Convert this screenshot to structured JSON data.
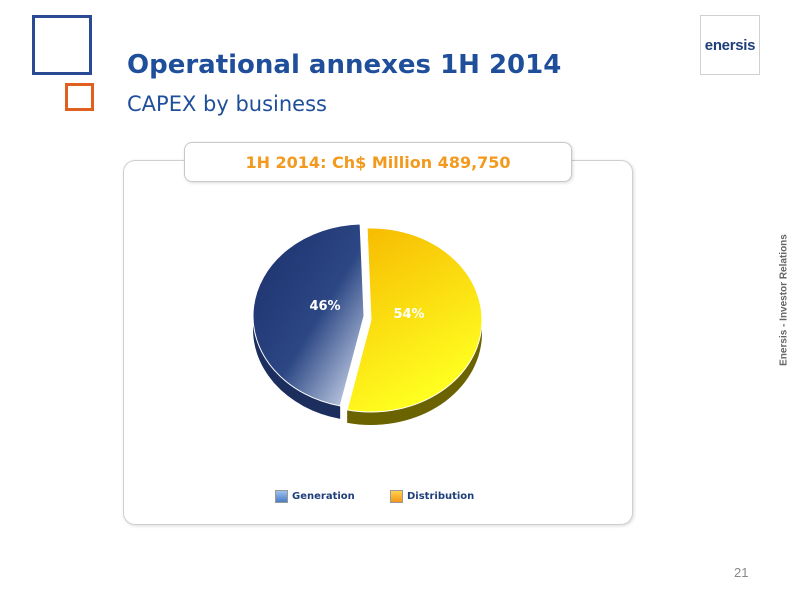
{
  "slide": {
    "title": "Operational annexes 1H 2014",
    "subtitle": "CAPEX by business",
    "logo_text": "enersis",
    "side_text": "Enersis - Investor Relations",
    "page_number": "21",
    "colors": {
      "title": "#1f4e9a",
      "accent_orange": "#f39a1e",
      "square_blue": "#2b4a94",
      "square_orange": "#e0601f"
    }
  },
  "chart_data": {
    "type": "pie",
    "title": "1H 2014: Ch$ Million 489,750",
    "slices": [
      {
        "label": "Generation",
        "value": 46,
        "display": "46%",
        "color": "#1a2f6b"
      },
      {
        "label": "Distribution",
        "value": 54,
        "display": "54%",
        "color": "#f6c200"
      }
    ],
    "legend_position": "bottom"
  }
}
